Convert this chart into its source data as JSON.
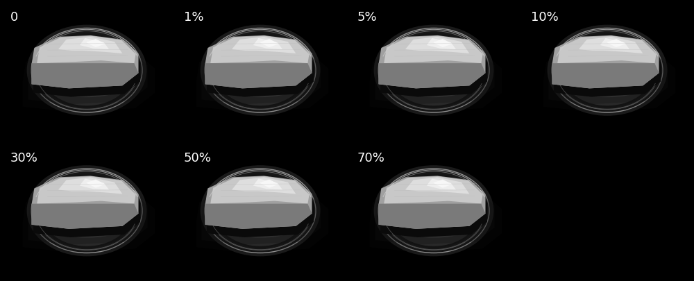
{
  "figure_width": 10.0,
  "figure_height": 4.05,
  "dpi": 100,
  "background_color": "#000000",
  "label_color": "#ffffff",
  "label_fontsize": 13,
  "label_fontweight": "normal",
  "grid_rows": 2,
  "grid_cols": 4,
  "panels": [
    {
      "row": 0,
      "col": 0,
      "label": "0",
      "has_content": true,
      "background": "black"
    },
    {
      "row": 0,
      "col": 1,
      "label": "1%",
      "has_content": true,
      "background": "black"
    },
    {
      "row": 0,
      "col": 2,
      "label": "5%",
      "has_content": true,
      "background": "black"
    },
    {
      "row": 0,
      "col": 3,
      "label": "10%",
      "has_content": true,
      "background": "black"
    },
    {
      "row": 1,
      "col": 0,
      "label": "30%",
      "has_content": true,
      "background": "black"
    },
    {
      "row": 1,
      "col": 1,
      "label": "50%",
      "has_content": true,
      "background": "black"
    },
    {
      "row": 1,
      "col": 2,
      "label": "70%",
      "has_content": true,
      "background": "black"
    },
    {
      "row": 1,
      "col": 3,
      "label": "",
      "has_content": false,
      "background": "white"
    }
  ]
}
